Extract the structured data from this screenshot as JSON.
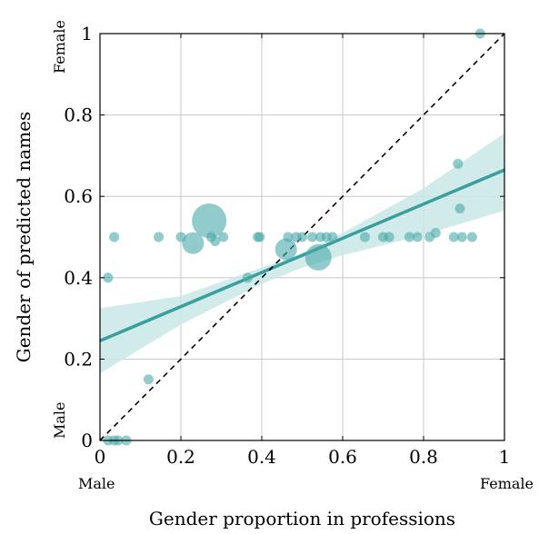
{
  "chart_data": {
    "type": "scatter",
    "xlabel": "Gender proportion in professions",
    "ylabel": "Gender of predicted names",
    "xlim": [
      0,
      1
    ],
    "ylim": [
      0,
      1
    ],
    "x_ticks": [
      "0",
      "0.2",
      "0.4",
      "0.6",
      "0.8",
      "1"
    ],
    "y_ticks": [
      "0",
      "0.2",
      "0.4",
      "0.6",
      "0.8",
      "1"
    ],
    "x_end_labels": {
      "low": "Male",
      "high": "Female"
    },
    "y_end_labels": {
      "low": "Male",
      "high": "Female"
    },
    "grid": true,
    "colors": {
      "points": "#4aa9a9",
      "regression": "#3a9e9e",
      "band": "#c9e6e6",
      "reference": "#000000"
    },
    "reference_line": {
      "style": "dashed",
      "from": [
        0,
        0
      ],
      "to": [
        1,
        1
      ]
    },
    "regression_line": {
      "from": [
        0,
        0.245
      ],
      "to": [
        1,
        0.665
      ]
    },
    "confidence_band": {
      "x": [
        0,
        0.2,
        0.4,
        0.5,
        0.6,
        0.8,
        1
      ],
      "lower": [
        0.165,
        0.285,
        0.385,
        0.425,
        0.455,
        0.505,
        0.565
      ],
      "upper": [
        0.325,
        0.355,
        0.425,
        0.46,
        0.51,
        0.62,
        0.755
      ]
    },
    "points": [
      {
        "x": 0.94,
        "y": 1.0,
        "size": 1
      },
      {
        "x": 0.885,
        "y": 0.68,
        "size": 1
      },
      {
        "x": 0.89,
        "y": 0.57,
        "size": 1
      },
      {
        "x": 0.27,
        "y": 0.54,
        "size": 4
      },
      {
        "x": 0.23,
        "y": 0.485,
        "size": 2
      },
      {
        "x": 0.285,
        "y": 0.49,
        "size": 1
      },
      {
        "x": 0.46,
        "y": 0.47,
        "size": 2
      },
      {
        "x": 0.54,
        "y": 0.45,
        "size": 3
      },
      {
        "x": 0.035,
        "y": 0.5,
        "size": 1
      },
      {
        "x": 0.145,
        "y": 0.5,
        "size": 1
      },
      {
        "x": 0.2,
        "y": 0.5,
        "size": 1
      },
      {
        "x": 0.275,
        "y": 0.5,
        "size": 1
      },
      {
        "x": 0.305,
        "y": 0.5,
        "size": 1
      },
      {
        "x": 0.39,
        "y": 0.5,
        "size": 1
      },
      {
        "x": 0.395,
        "y": 0.5,
        "size": 1
      },
      {
        "x": 0.465,
        "y": 0.5,
        "size": 1
      },
      {
        "x": 0.485,
        "y": 0.5,
        "size": 1
      },
      {
        "x": 0.5,
        "y": 0.5,
        "size": 1
      },
      {
        "x": 0.525,
        "y": 0.5,
        "size": 1
      },
      {
        "x": 0.545,
        "y": 0.5,
        "size": 1
      },
      {
        "x": 0.56,
        "y": 0.5,
        "size": 1
      },
      {
        "x": 0.575,
        "y": 0.5,
        "size": 1
      },
      {
        "x": 0.655,
        "y": 0.5,
        "size": 1
      },
      {
        "x": 0.7,
        "y": 0.5,
        "size": 1
      },
      {
        "x": 0.715,
        "y": 0.5,
        "size": 1
      },
      {
        "x": 0.765,
        "y": 0.5,
        "size": 1
      },
      {
        "x": 0.785,
        "y": 0.5,
        "size": 1
      },
      {
        "x": 0.815,
        "y": 0.5,
        "size": 1
      },
      {
        "x": 0.83,
        "y": 0.51,
        "size": 1
      },
      {
        "x": 0.875,
        "y": 0.5,
        "size": 1
      },
      {
        "x": 0.895,
        "y": 0.5,
        "size": 1
      },
      {
        "x": 0.92,
        "y": 0.5,
        "size": 1
      },
      {
        "x": 0.02,
        "y": 0.4,
        "size": 1
      },
      {
        "x": 0.365,
        "y": 0.4,
        "size": 1
      },
      {
        "x": 0.12,
        "y": 0.15,
        "size": 1
      },
      {
        "x": 0.02,
        "y": 0.0,
        "size": 1
      },
      {
        "x": 0.035,
        "y": 0.0,
        "size": 1
      },
      {
        "x": 0.045,
        "y": 0.0,
        "size": 1
      },
      {
        "x": 0.065,
        "y": 0.0,
        "size": 1
      }
    ]
  }
}
